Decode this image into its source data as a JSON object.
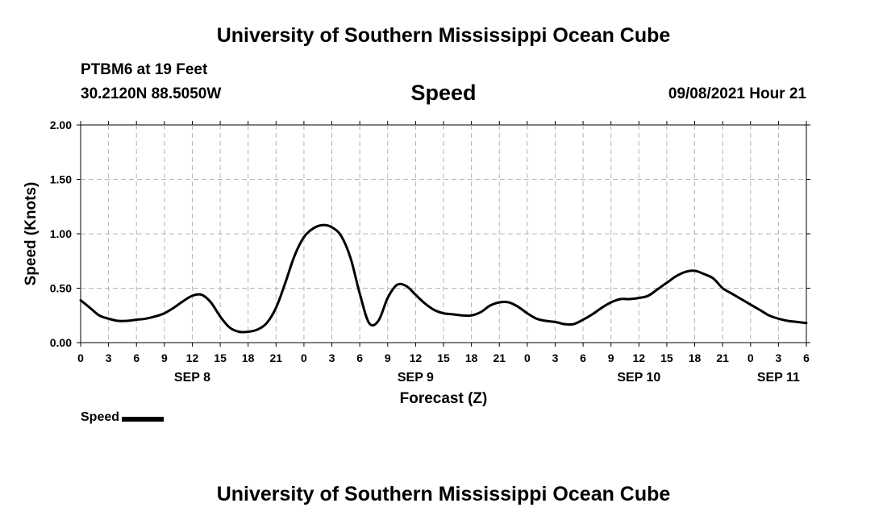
{
  "header": {
    "title": "University of Southern Mississippi Ocean Cube",
    "station": "PTBM6 at 19 Feet",
    "coordinates": "30.2120N  88.5050W",
    "timestamp": "09/08/2021 Hour 21"
  },
  "footer": {
    "title": "University of Southern Mississippi Ocean Cube"
  },
  "legend": {
    "label": "Speed",
    "color": "#000000"
  },
  "chart_data": {
    "type": "line",
    "title": "Speed",
    "xlabel": "Forecast (Z)",
    "ylabel": "Speed (Knots)",
    "xunit": "hours since SEP 8 00Z",
    "xlim": [
      0,
      78
    ],
    "ylim": [
      0,
      2
    ],
    "grid": true,
    "yticks": [
      0,
      0.5,
      1.0,
      1.5,
      2.0
    ],
    "ytick_labels": [
      "0.00",
      "0.50",
      "1.00",
      "1.50",
      "2.00"
    ],
    "xticks": [
      0,
      3,
      6,
      9,
      12,
      15,
      18,
      21,
      24,
      27,
      30,
      33,
      36,
      39,
      42,
      45,
      48,
      51,
      54,
      57,
      60,
      63,
      66,
      69,
      72,
      75,
      78
    ],
    "xtick_labels": [
      "0",
      "3",
      "6",
      "9",
      "12",
      "15",
      "18",
      "21",
      "0",
      "3",
      "6",
      "9",
      "12",
      "15",
      "18",
      "21",
      "0",
      "3",
      "6",
      "9",
      "12",
      "15",
      "18",
      "21",
      "0",
      "3",
      "6"
    ],
    "day_labels": [
      {
        "label": "SEP 8",
        "hour": 12
      },
      {
        "label": "SEP 9",
        "hour": 36
      },
      {
        "label": "SEP 10",
        "hour": 60
      },
      {
        "label": "SEP 11",
        "hour": 75
      }
    ],
    "series": [
      {
        "name": "Speed",
        "color": "#000000",
        "x": [
          0,
          1,
          2,
          3,
          4,
          5,
          6,
          7,
          8,
          9,
          10,
          11,
          12,
          13,
          14,
          15,
          16,
          17,
          18,
          19,
          20,
          21,
          22,
          23,
          24,
          25,
          26,
          27,
          28,
          29,
          30,
          31,
          32,
          33,
          34,
          35,
          36,
          37,
          38,
          39,
          40,
          41,
          42,
          43,
          44,
          45,
          46,
          47,
          48,
          49,
          50,
          51,
          52,
          53,
          54,
          55,
          56,
          57,
          58,
          59,
          60,
          61,
          62,
          63,
          64,
          65,
          66,
          67,
          68,
          69,
          70,
          71,
          72,
          73,
          74,
          75,
          76,
          77,
          78
        ],
        "values": [
          0.39,
          0.32,
          0.25,
          0.22,
          0.2,
          0.2,
          0.21,
          0.22,
          0.24,
          0.27,
          0.32,
          0.38,
          0.43,
          0.44,
          0.37,
          0.24,
          0.14,
          0.1,
          0.1,
          0.12,
          0.18,
          0.32,
          0.55,
          0.8,
          0.97,
          1.05,
          1.08,
          1.06,
          0.98,
          0.78,
          0.45,
          0.18,
          0.2,
          0.41,
          0.53,
          0.52,
          0.44,
          0.36,
          0.3,
          0.27,
          0.26,
          0.25,
          0.25,
          0.28,
          0.34,
          0.37,
          0.37,
          0.33,
          0.27,
          0.22,
          0.2,
          0.19,
          0.17,
          0.17,
          0.21,
          0.26,
          0.32,
          0.37,
          0.4,
          0.4,
          0.41,
          0.43,
          0.49,
          0.55,
          0.61,
          0.65,
          0.66,
          0.63,
          0.59,
          0.5,
          0.45,
          0.4,
          0.35,
          0.3,
          0.25,
          0.22,
          0.2,
          0.19,
          0.18
        ]
      }
    ]
  }
}
